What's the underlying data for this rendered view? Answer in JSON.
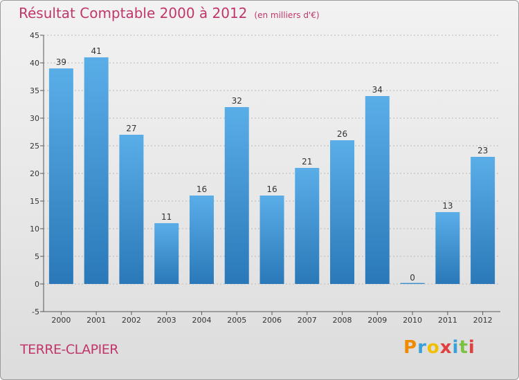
{
  "header": {
    "title": "Résultat Comptable 2000 à 2012",
    "subtitle": "(en milliers d'€)"
  },
  "footer": {
    "commune": "TERRE-CLAPIER",
    "logo_text": "Proxiti",
    "logo_letters": [
      {
        "ch": "P",
        "color": "#f08a00"
      },
      {
        "ch": "r",
        "color": "#3aa0d8"
      },
      {
        "ch": "o",
        "color": "#f0c000"
      },
      {
        "ch": "x",
        "color": "#e23f3f"
      },
      {
        "ch": "i",
        "color": "#3aa0d8"
      },
      {
        "ch": "t",
        "color": "#7cc242"
      },
      {
        "ch": "i",
        "color": "#e23f3f"
      }
    ]
  },
  "colors": {
    "bar_top": "#5aaee8",
    "bar_bottom": "#2a78b8",
    "title": "#c0366b"
  },
  "chart_data": {
    "type": "bar",
    "title": "Résultat Comptable 2000 à 2012",
    "subtitle": "(en milliers d'€)",
    "categories": [
      "2000",
      "2001",
      "2002",
      "2003",
      "2004",
      "2005",
      "2006",
      "2007",
      "2008",
      "2009",
      "2010",
      "2011",
      "2012"
    ],
    "values": [
      39,
      41,
      27,
      11,
      16,
      32,
      16,
      21,
      26,
      34,
      0,
      13,
      23
    ],
    "ylim": [
      -5,
      45
    ],
    "yticks": [
      -5,
      0,
      5,
      10,
      15,
      20,
      25,
      30,
      35,
      40,
      45
    ],
    "grid": true,
    "xlabel": "",
    "ylabel": ""
  }
}
